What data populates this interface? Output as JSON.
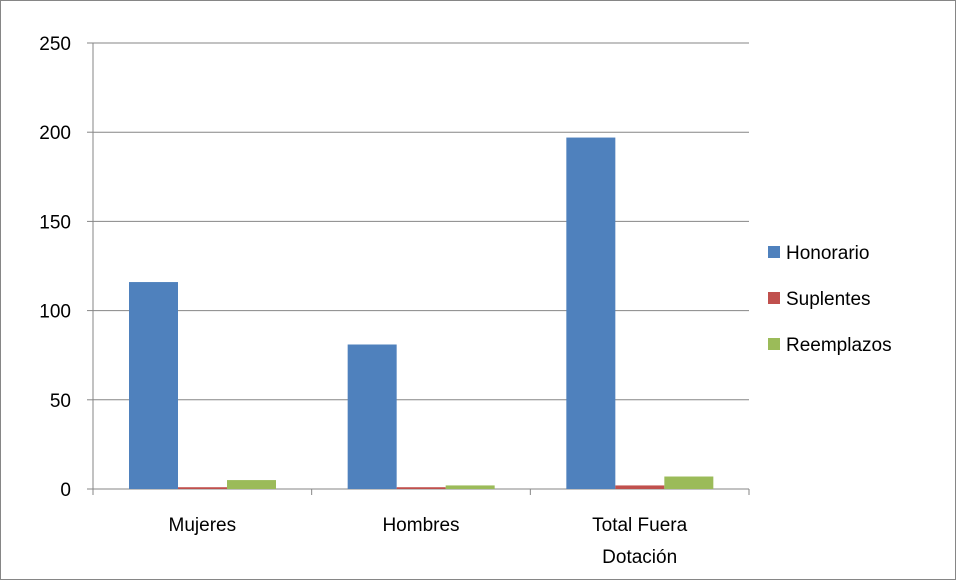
{
  "chart_data": {
    "type": "bar",
    "categories": [
      [
        "Mujeres"
      ],
      [
        "Hombres"
      ],
      [
        "Total Fuera",
        "Dotación"
      ]
    ],
    "series": [
      {
        "name": "Honorario",
        "color": "#4F81BD",
        "values": [
          116,
          81,
          197
        ]
      },
      {
        "name": "Suplentes",
        "color": "#C0504D",
        "values": [
          1,
          1,
          2
        ]
      },
      {
        "name": "Reemplazos",
        "color": "#9BBB59",
        "values": [
          5,
          2,
          7
        ]
      }
    ],
    "y_ticks": [
      "0",
      "50",
      "100",
      "150",
      "200",
      "250"
    ],
    "ylim": [
      0,
      250
    ],
    "grid": true,
    "legend_position": "right"
  }
}
